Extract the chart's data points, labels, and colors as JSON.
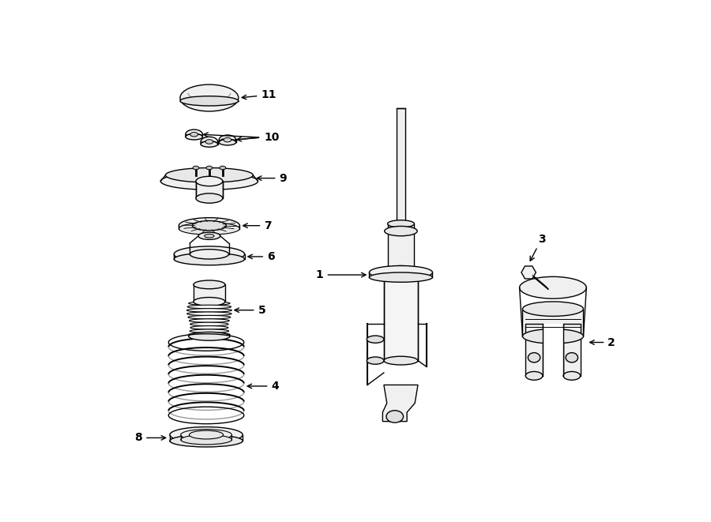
{
  "bg_color": "#ffffff",
  "line_color": "#000000",
  "lw": 1.0,
  "label_fontsize": 10,
  "figsize": [
    9.0,
    6.61
  ],
  "dpi": 100
}
